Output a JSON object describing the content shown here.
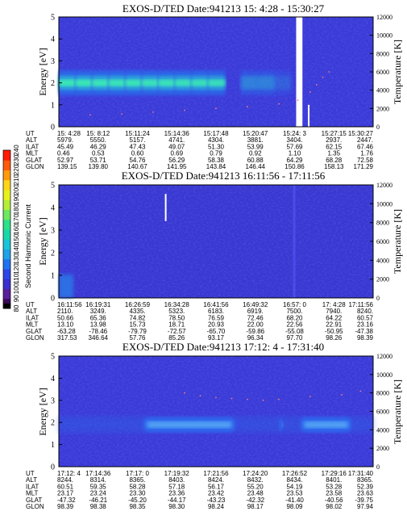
{
  "colors": {
    "background_field": "#3a3ad8",
    "noise_dark": "#2d2dc0",
    "noise_light": "#5a5af0",
    "band_outer": "#2a6ae8",
    "band_mid": "#2fb4d6",
    "band_core": "#3ef0b0",
    "axis": "#000000",
    "dots": "#ff7a7a",
    "white_line": "#ffffff"
  },
  "colorbar": {
    "label": "Second Harmonic Current",
    "ticks": [
      "80",
      "90",
      "100",
      "110",
      "120",
      "130",
      "140",
      "150",
      "160",
      "170",
      "180",
      "190",
      "200",
      "210",
      "220",
      "230",
      "240"
    ],
    "colors": [
      "#000000",
      "#3b0a5a",
      "#5a1f9a",
      "#3b2fd0",
      "#2c47e8",
      "#1f72f0",
      "#1fa2e8",
      "#18c4d8",
      "#18d8a8",
      "#2de08a",
      "#6ee860",
      "#b4ee3a",
      "#e8f01e",
      "#ffd51a",
      "#ff9a10",
      "#ff5a0a",
      "#ff1a06"
    ]
  },
  "chart_data": [
    {
      "type": "heatmap",
      "title": "EXOS-D/TED  Date:941213  15: 4:28 - 15:30:27",
      "ylabel": "Energy [eV]",
      "y2label": "Temperature [K]",
      "ylim": [
        0,
        5
      ],
      "y2lim": [
        0,
        12000
      ],
      "yticks": [
        "0",
        "1",
        "2",
        "3",
        "4",
        "5"
      ],
      "y2ticks": [
        "0",
        "2000",
        "4000",
        "6000",
        "8000",
        "10000",
        "12000"
      ],
      "band_energy_center": 2.0,
      "band_energy_halfwidth": 0.55,
      "band_intensity_profile": [
        0.95,
        0.95,
        0.92,
        0.9,
        0.9,
        0.88,
        0.88,
        0.85,
        0.85,
        0.82,
        0.0,
        0.45,
        0.45,
        0.2,
        0.0,
        0.0,
        0.0,
        0.0,
        0.0
      ],
      "gap_fraction": [
        0.755,
        0.775
      ],
      "temperature_dots": [
        [
          0.0,
          1200
        ],
        [
          0.1,
          1300
        ],
        [
          0.2,
          1400
        ],
        [
          0.3,
          1600
        ],
        [
          0.4,
          1800
        ],
        [
          0.5,
          2000
        ],
        [
          0.6,
          2200
        ],
        [
          0.7,
          2500
        ],
        [
          0.76,
          2900
        ],
        [
          0.8,
          3800
        ],
        [
          0.82,
          4600
        ],
        [
          0.84,
          5400
        ],
        [
          0.86,
          6000
        ]
      ],
      "white_line_fraction": 0.795,
      "ephemeris": {
        "labels": [
          "UT",
          "ALT",
          "ILAT",
          "MLT",
          "GLAT",
          "GLON"
        ],
        "columns": [
          [
            "15: 4:28",
            "5979.",
            "45.49",
            "0.46",
            "52.97",
            "139.15"
          ],
          [
            "15: 8:12",
            "5550.",
            "46.29",
            "0.53",
            "53.71",
            "139.80"
          ],
          [
            "15:11:24",
            "5157.",
            "47.43",
            "0.60",
            "54.76",
            "140.67"
          ],
          [
            "15:14:36",
            "4741.",
            "49.07",
            "0.69",
            "56.29",
            "141.95"
          ],
          [
            "15:17:48",
            "4304.",
            "51.30",
            "0.79",
            "58.38",
            "143.84"
          ],
          [
            "15:20:47",
            "3881.",
            "53.99",
            "0.92",
            "60.88",
            "146.44"
          ],
          [
            "15:24: 3",
            "3404.",
            "57.69",
            "1.10",
            "64.29",
            "150.86"
          ],
          [
            "15:27:15",
            "2937.",
            "62.15",
            "1.35",
            "68.28",
            "158.13"
          ],
          [
            "15:30:27",
            "2447.",
            "67.46",
            "1.76",
            "72.58",
            "171.29"
          ]
        ]
      }
    },
    {
      "type": "heatmap",
      "title": "EXOS-D/TED  Date:941213  16:11:56 - 17:11:56",
      "ylabel": "Energy [eV]",
      "y2label": "Temperature [K]",
      "ylim": [
        0,
        5
      ],
      "y2lim": [
        0,
        12000
      ],
      "yticks": [
        "0",
        "1",
        "2",
        "3",
        "4",
        "5"
      ],
      "y2ticks": [
        "0",
        "2000",
        "4000",
        "6000",
        "8000",
        "10000",
        "12000"
      ],
      "white_line_fraction": 0.34,
      "white_line_energy": [
        3.4,
        4.6
      ],
      "light_column_fraction": 0.745,
      "ephemeris": {
        "labels": [
          "UT",
          "ALT",
          "ILAT",
          "MLT",
          "GLAT",
          "GLON"
        ],
        "columns": [
          [
            "16:11:56",
            "2110.",
            "50.66",
            "13.10",
            "-63.28",
            "317.53"
          ],
          [
            "16:19:31",
            "3249.",
            "65.36",
            "13.98",
            "-78.46",
            "346.64"
          ],
          [
            "16:26:59",
            "4335.",
            "74.82",
            "15.73",
            "-79.79",
            "57.76"
          ],
          [
            "16:34:28",
            "5323.",
            "78.50",
            "18.71",
            "-72.57",
            "85.26"
          ],
          [
            "16:41:56",
            "6183.",
            "76.59",
            "20.93",
            "-65.70",
            "93.17"
          ],
          [
            "16:49:32",
            "6919.",
            "72.46",
            "22.00",
            "-59.86",
            "96.34"
          ],
          [
            "16:57: 0",
            "7500.",
            "68.20",
            "22.56",
            "-55.08",
            "97.70"
          ],
          [
            "17: 4:28",
            "7940.",
            "64.22",
            "22.91",
            "-50.95",
            "98.26"
          ],
          [
            "17:11:56",
            "8240.",
            "60.57",
            "23.16",
            "-47.38",
            "98.39"
          ]
        ]
      }
    },
    {
      "type": "heatmap",
      "title": "EXOS-D/TED  Date:941213  17:12: 4 - 17:31:40",
      "ylabel": "Energy [eV]",
      "y2label": "Temperature [K]",
      "ylim": [
        0,
        5
      ],
      "y2lim": [
        0,
        12000
      ],
      "yticks": [
        "0",
        "1",
        "2",
        "3",
        "4",
        "5"
      ],
      "y2ticks": [
        "0",
        "2000",
        "4000",
        "6000",
        "8000",
        "10000",
        "12000"
      ],
      "band_energy_center": 1.9,
      "band_segments": [
        [
          0.27,
          0.56
        ],
        [
          0.7,
          0.71
        ],
        [
          0.77,
          0.93
        ]
      ],
      "temperature_dots": [
        [
          0.4,
          8000
        ],
        [
          0.45,
          7700
        ],
        [
          0.5,
          7500
        ],
        [
          0.55,
          7400
        ],
        [
          0.6,
          7300
        ],
        [
          0.65,
          7200
        ],
        [
          0.7,
          7300
        ],
        [
          0.8,
          7600
        ],
        [
          0.9,
          7800
        ],
        [
          0.96,
          8200
        ]
      ],
      "ephemeris": {
        "labels": [
          "UT",
          "ALT",
          "ILAT",
          "MLT",
          "GLAT",
          "GLON"
        ],
        "columns": [
          [
            "17:12: 4",
            "8244.",
            "60.51",
            "23.17",
            "-47.32",
            "98.39"
          ],
          [
            "17:14:36",
            "8314.",
            "59.35",
            "23.24",
            "-46.21",
            "98.38"
          ],
          [
            "17:17: 0",
            "8365.",
            "58.28",
            "23.30",
            "-45.20",
            "98.35"
          ],
          [
            "17:19:32",
            "8403.",
            "57.18",
            "23.36",
            "-44.17",
            "98.30"
          ],
          [
            "17:21:56",
            "8424.",
            "56.17",
            "23.42",
            "-43.23",
            "98.24"
          ],
          [
            "17:24:20",
            "8432.",
            "55.20",
            "23.48",
            "-42.32",
            "98.17"
          ],
          [
            "17:26:52",
            "8434.",
            "54.19",
            "23.53",
            "-41.40",
            "98.09"
          ],
          [
            "17:29:16",
            "8401.",
            "53.28",
            "23.58",
            "-40.56",
            "98.02"
          ],
          [
            "17:31:40",
            "8365.",
            "52.39",
            "23.63",
            "-39.75",
            "97.94"
          ]
        ]
      }
    }
  ]
}
